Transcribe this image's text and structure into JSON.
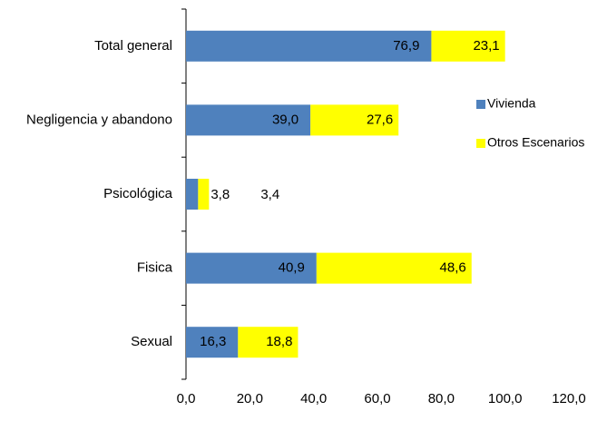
{
  "chart_data": {
    "type": "stacked-bar-horizontal",
    "categories": [
      "Total general",
      "Negligencia y abandono",
      "Psicológica",
      "Fisica",
      "Sexual"
    ],
    "series": [
      {
        "name": "Vivienda",
        "color": "#4f81bd",
        "values": [
          76.9,
          39.0,
          3.8,
          40.9,
          16.3
        ],
        "value_labels": [
          "76,9",
          "39,0",
          "3,8",
          "40,9",
          "16,3"
        ]
      },
      {
        "name": "Otros Escenarios",
        "color": "#ffff00",
        "values": [
          23.1,
          27.6,
          3.4,
          48.6,
          18.8
        ],
        "value_labels": [
          "23,1",
          "27,6",
          "3,4",
          "48,6",
          "18,8"
        ]
      }
    ],
    "xlim": [
      0,
      120
    ],
    "xticks": [
      {
        "value": 0,
        "label": "0,0"
      },
      {
        "value": 20,
        "label": "20,0"
      },
      {
        "value": 40,
        "label": "40,0"
      },
      {
        "value": 60,
        "label": "60,0"
      },
      {
        "value": 80,
        "label": "80,0"
      },
      {
        "value": 100,
        "label": "100,0"
      },
      {
        "value": 120,
        "label": "120,0"
      }
    ],
    "legend": "right"
  }
}
